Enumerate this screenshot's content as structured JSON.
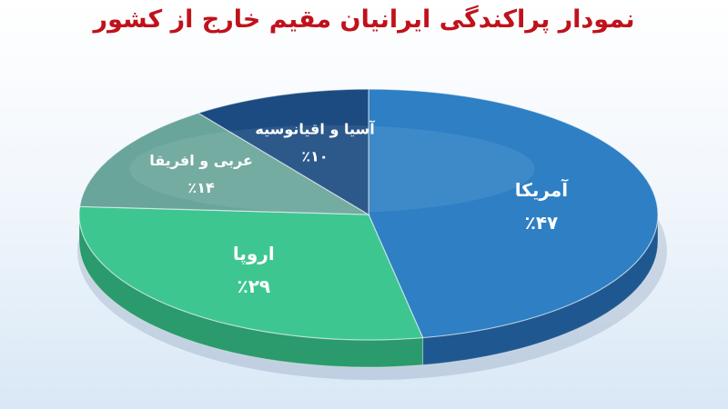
{
  "chart_data": {
    "type": "pie",
    "title": "نمودار پراکندگی ایرانیان مقیم خارج از کشور",
    "categories": [
      "آمریکا",
      "اروپا",
      "عربی و افریقا",
      "آسیا و اقیانوسیه"
    ],
    "values": [
      47,
      29,
      14,
      10
    ],
    "value_labels": [
      "٪۴۷",
      "٪۲۹",
      "٪۱۴",
      "٪۱۰"
    ],
    "colors": {
      "top": [
        "#2e7fc4",
        "#3ec690",
        "#6aa59b",
        "#1b4b80"
      ],
      "side": [
        "#1f5890",
        "#2b9a6d",
        "#4f7f76",
        "#123962"
      ]
    },
    "style": "3d-pie",
    "legend": "none"
  }
}
